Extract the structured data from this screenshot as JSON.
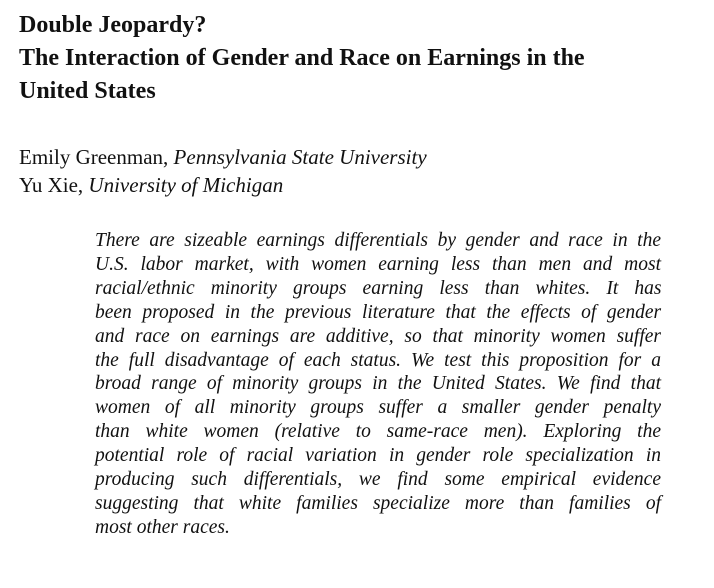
{
  "title_lines": [
    "Double Jeopardy?",
    "The Interaction of Gender and Race on Earnings in the",
    "United States"
  ],
  "authors": [
    {
      "name": "Emily Greenman,",
      "affiliation": "Pennsylvania State University"
    },
    {
      "name": "Yu Xie,",
      "affiliation": "University of Michigan"
    }
  ],
  "abstract_lines": [
    "There are sizeable earnings differentials by gender and race in the",
    "U.S. labor market, with women earning less than men and most",
    "racial/ethnic minority groups earning less than whites. It has",
    "been proposed in the previous literature that the effects of gender",
    "and race on earnings are additive, so that minority women suffer",
    "the full disadvantage of each status. We test this proposition for a",
    "broad range of minority groups in the United States. We find that",
    "women of all minority groups suffer a smaller gender penalty",
    "than white women (relative to same-race men). Exploring the",
    "potential role of racial variation in gender role specialization in",
    "producing such differentials, we find some empirical evidence",
    "suggesting that white families specialize more than families of",
    "most other races."
  ]
}
